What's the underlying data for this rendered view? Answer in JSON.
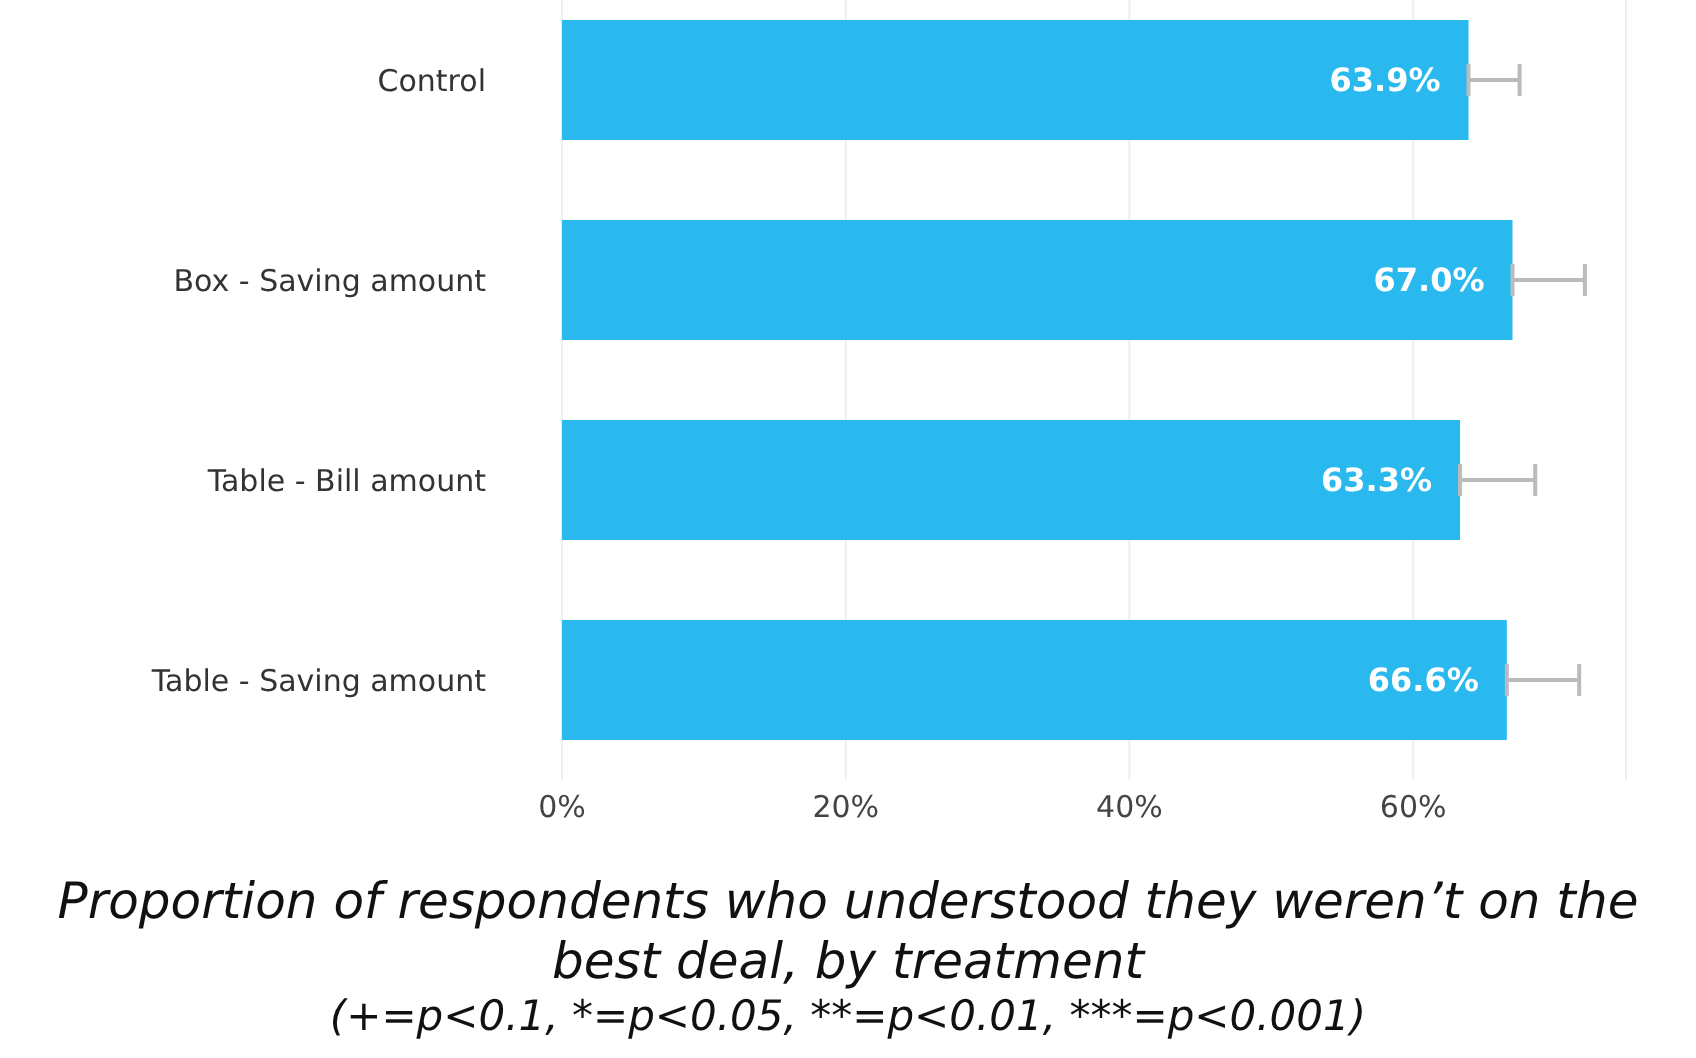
{
  "chart_data": {
    "type": "bar",
    "orientation": "horizontal",
    "title": "Proportion of respondents who understood they weren’t on the best deal, by treatment",
    "subtitle": "(+=p<0.1, *=p<0.05, **=p<0.01, ***=p<0.001)",
    "categories": [
      "Control",
      "Box - Saving amount",
      "Table - Bill amount",
      "Table - Saving amount"
    ],
    "values": [
      63.9,
      67.0,
      63.3,
      66.6
    ],
    "value_labels": [
      "63.9%",
      "67.0%",
      "63.3%",
      "66.6%"
    ],
    "errors": [
      [
        63.9,
        67.5
      ],
      [
        67.0,
        72.1
      ],
      [
        63.3,
        68.6
      ],
      [
        66.6,
        71.7
      ]
    ],
    "color": "#29b9ef",
    "xlim": [
      0,
      75
    ],
    "xticks": [
      {
        "value": 0,
        "label": "0%"
      },
      {
        "value": 20,
        "label": "20%"
      },
      {
        "value": 40,
        "label": "40%"
      },
      {
        "value": 60,
        "label": "60%"
      }
    ],
    "grid": "x"
  }
}
